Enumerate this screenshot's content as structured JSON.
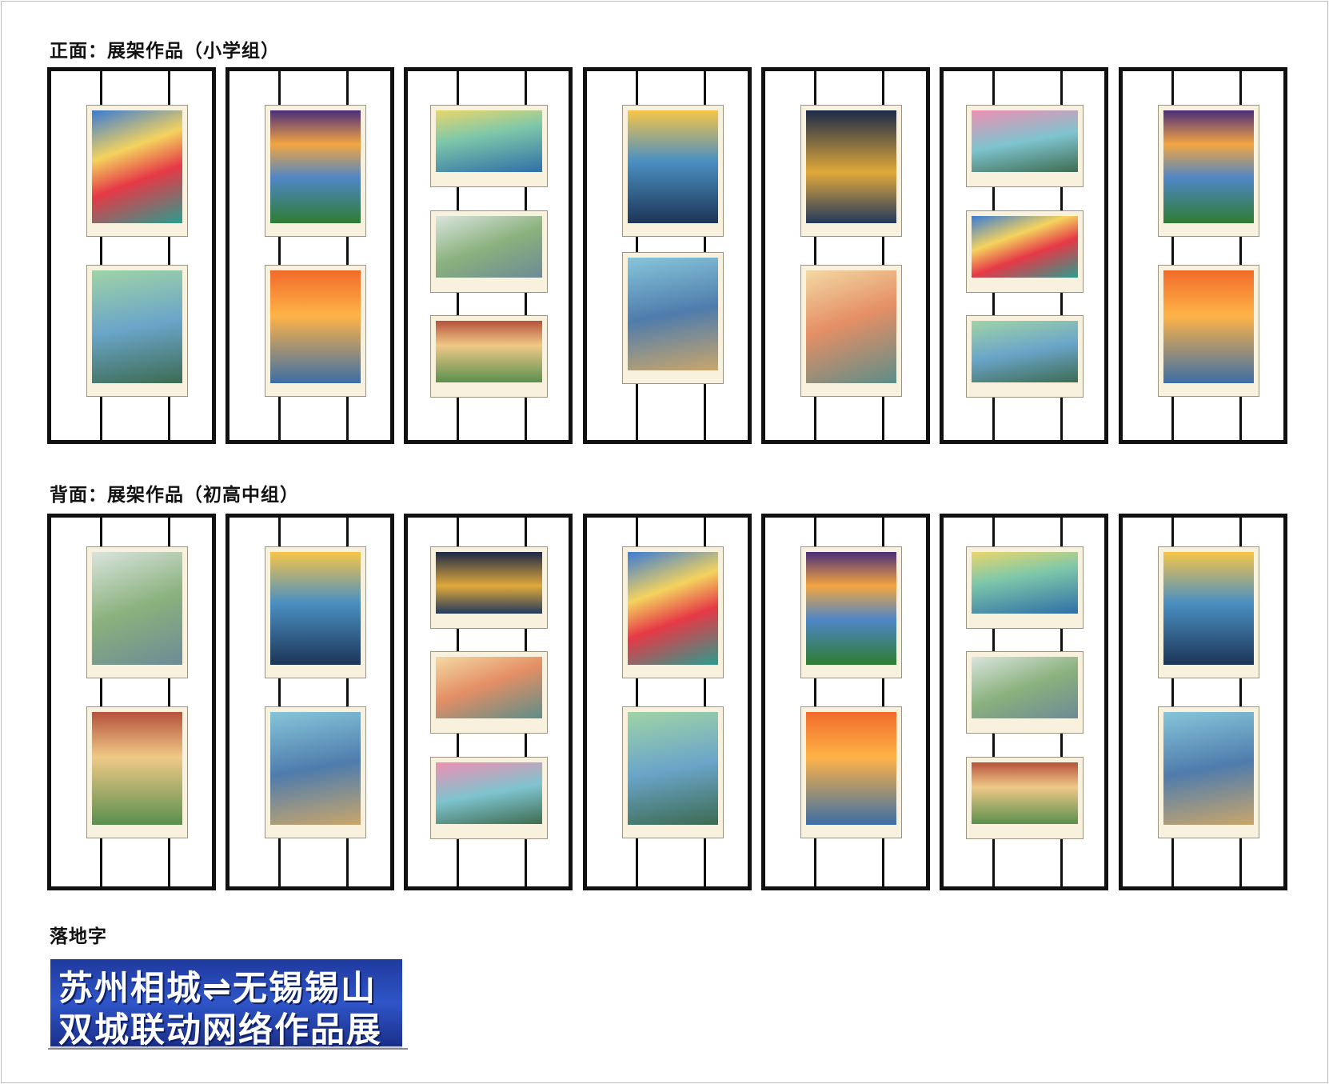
{
  "front_title": "正面：展架作品（小学组）",
  "back_title": "背面：展架作品（初高中组）",
  "ground_title": "落地字",
  "banner": {
    "line1": "苏州相城⇌无锡锡山",
    "line2": "双城联动网络作品展"
  }
}
